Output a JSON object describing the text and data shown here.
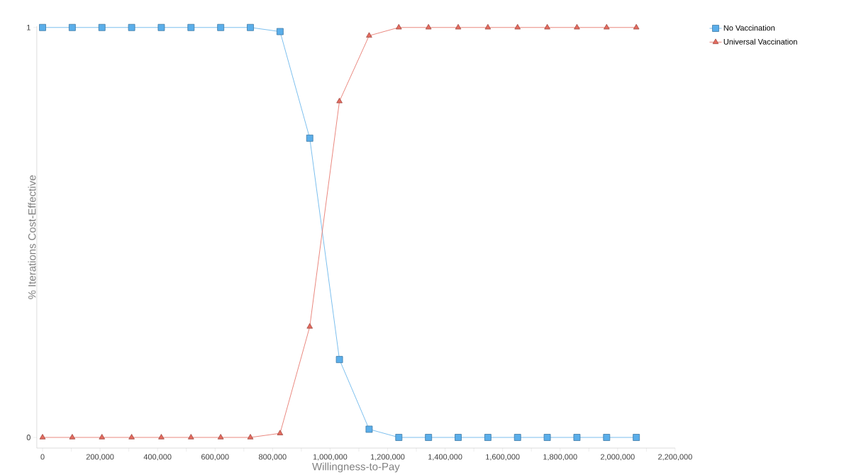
{
  "chart_data": {
    "type": "line",
    "xlabel": "Willingness-to-Pay",
    "ylabel": "% Iterations Cost-Effective",
    "x": [
      0,
      103250,
      206500,
      309750,
      413000,
      516250,
      619500,
      722750,
      826000,
      929250,
      1032500,
      1135750,
      1239000,
      1342250,
      1445500,
      1548750,
      1652000,
      1755250,
      1858500,
      1961750,
      2065000
    ],
    "series": [
      {
        "name": "No Vaccination",
        "color": "#5aaeea",
        "marker": "square",
        "values": [
          1,
          1,
          1,
          1,
          1,
          1,
          1,
          1,
          0.99,
          0.73,
          0.19,
          0.02,
          0,
          0,
          0,
          0,
          0,
          0,
          0,
          0,
          0
        ]
      },
      {
        "name": "Universal Vaccination",
        "color": "#e46a5e",
        "marker": "triangle",
        "values": [
          0,
          0,
          0,
          0,
          0,
          0,
          0,
          0,
          0.01,
          0.27,
          0.82,
          0.98,
          1,
          1,
          1,
          1,
          1,
          1,
          1,
          1,
          1
        ]
      }
    ],
    "xlim": [
      -20000,
      2200000
    ],
    "ylim": [
      -0.026,
      1.003
    ],
    "xticks": [
      0,
      {
        "value": 100000,
        "label": null
      },
      {
        "value": 200000,
        "label": "200,000"
      },
      {
        "value": 300000,
        "label": null
      },
      {
        "value": 400000,
        "label": "400,000"
      },
      {
        "value": 500000,
        "label": null
      },
      {
        "value": 600000,
        "label": "600,000"
      },
      {
        "value": 700000,
        "label": null
      },
      {
        "value": 800000,
        "label": "800,000"
      },
      {
        "value": 900000,
        "label": null
      },
      {
        "value": 1000000,
        "label": "1,000,000"
      },
      {
        "value": 1100000,
        "label": null
      },
      {
        "value": 1200000,
        "label": "1,200,000"
      },
      {
        "value": 1300000,
        "label": null
      },
      {
        "value": 1400000,
        "label": "1,400,000"
      },
      {
        "value": 1500000,
        "label": null
      },
      {
        "value": 1600000,
        "label": "1,600,000"
      },
      {
        "value": 1700000,
        "label": null
      },
      {
        "value": 1800000,
        "label": "1,800,000"
      },
      {
        "value": 1900000,
        "label": null
      },
      {
        "value": 2000000,
        "label": "2,000,000"
      },
      {
        "value": 2100000,
        "label": null
      },
      {
        "value": 2200000,
        "label": "2,200,000"
      }
    ],
    "yticks": [
      0,
      1
    ],
    "grid": false,
    "legend": "top right"
  }
}
